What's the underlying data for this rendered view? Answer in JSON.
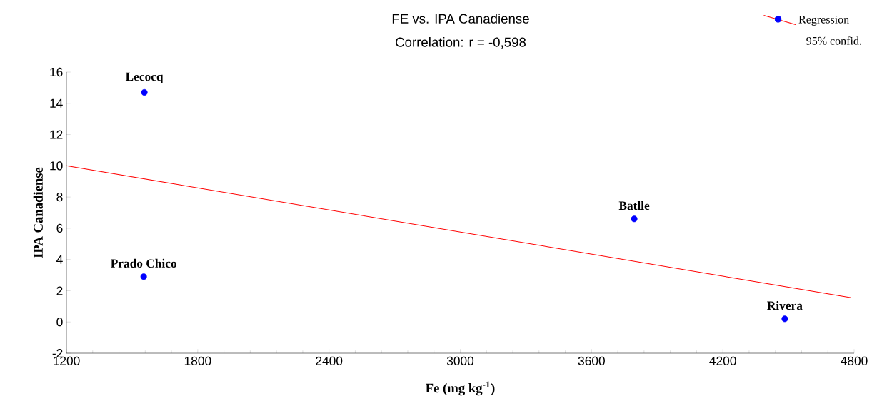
{
  "chart_data": {
    "type": "scatter",
    "title": "FE vs. IPA Canadiense",
    "subtitle": "Correlation: r = -0,598",
    "xlabel": "Fe (mg kg$^{-1}$)",
    "ylabel": "IPA Canadiense",
    "xlim": [
      1200,
      4800
    ],
    "xticks": [
      1200,
      1800,
      2400,
      3000,
      3600,
      4200,
      4800
    ],
    "ylim": [
      -2,
      16
    ],
    "yticks": [
      -2,
      0,
      2,
      4,
      6,
      8,
      10,
      12,
      14,
      16
    ],
    "x": [
      1556,
      1553,
      3795,
      4483
    ],
    "series": [
      {
        "color": "#0000ff",
        "values": [
          14.7,
          2.9,
          6.6,
          0.2
        ],
        "marker": "circle"
      },
      {
        "type": "line",
        "name": "Regression",
        "color": "#ff0000",
        "x": [
          1200,
          4787
        ],
        "values": [
          10.0,
          1.55
        ],
        "marker": "none",
        "line_style": "solid"
      }
    ],
    "annotations": [
      {
        "text": "Lecocq",
        "x": 1556,
        "y": 14.7
      },
      {
        "text": "Prado Chico",
        "x": 1553,
        "y": 2.9
      },
      {
        "text": "Batlle",
        "x": 3795,
        "y": 6.6
      },
      {
        "text": "Rivera",
        "x": 4483,
        "y": 0.2
      },
      "95% confid."
    ],
    "grid": false,
    "legend": "top right"
  }
}
